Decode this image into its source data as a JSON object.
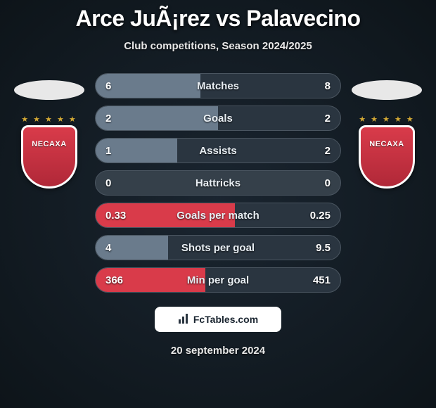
{
  "header": {
    "title": "Arce JuÃ¡rez vs Palavecino",
    "subtitle": "Club competitions, Season 2024/2025"
  },
  "players": {
    "left": {
      "club_name": "NECAXA",
      "badge_color": "#d93b4a",
      "star_color": "#d4a934"
    },
    "right": {
      "club_name": "NECAXA",
      "badge_color": "#d93b4a",
      "star_color": "#d4a934"
    }
  },
  "stats": [
    {
      "label": "Matches",
      "left_value": "6",
      "right_value": "8",
      "left_pct": 42.9,
      "right_pct": 57.1,
      "left_color": "#6a7b8c",
      "right_color": "#2a3540"
    },
    {
      "label": "Goals",
      "left_value": "2",
      "right_value": "2",
      "left_pct": 50,
      "right_pct": 50,
      "left_color": "#6a7b8c",
      "right_color": "#2a3540"
    },
    {
      "label": "Assists",
      "left_value": "1",
      "right_value": "2",
      "left_pct": 33.3,
      "right_pct": 66.7,
      "left_color": "#6a7b8c",
      "right_color": "#2a3540"
    },
    {
      "label": "Hattricks",
      "left_value": "0",
      "right_value": "0",
      "left_pct": 0,
      "right_pct": 0,
      "left_color": "#6a7b8c",
      "right_color": "#2a3540"
    },
    {
      "label": "Goals per match",
      "left_value": "0.33",
      "right_value": "0.25",
      "left_pct": 56.9,
      "right_pct": 43.1,
      "left_color": "#d93b4a",
      "right_color": "#2a3540"
    },
    {
      "label": "Shots per goal",
      "left_value": "4",
      "right_value": "9.5",
      "left_pct": 29.6,
      "right_pct": 70.4,
      "left_color": "#6a7b8c",
      "right_color": "#2a3540"
    },
    {
      "label": "Min per goal",
      "left_value": "366",
      "right_value": "451",
      "left_pct": 44.8,
      "right_pct": 55.2,
      "left_color": "#d93b4a",
      "right_color": "#2a3540"
    }
  ],
  "footer": {
    "site_name": "FcTables.com",
    "date": "20 september 2024"
  },
  "colors": {
    "background_inner": "#1a2530",
    "background_outer": "#0d1419",
    "bar_track": "#35404a",
    "bar_border": "#4a5560",
    "text_primary": "#ffffff",
    "text_secondary": "#e8e8e8",
    "label_text": "#e8eef3"
  }
}
